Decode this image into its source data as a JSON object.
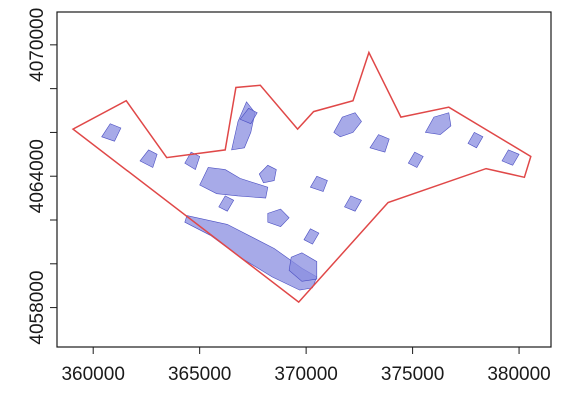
{
  "chart_data": {
    "type": "map",
    "title": "",
    "xlabel": "",
    "ylabel": "",
    "xlim": [
      358300,
      381500
    ],
    "ylim": [
      4056200,
      4071500
    ],
    "x_ticks": [
      {
        "value": 360000,
        "label": "360000"
      },
      {
        "value": 365000,
        "label": "365000"
      },
      {
        "value": 370000,
        "label": "370000"
      },
      {
        "value": 375000,
        "label": "375000"
      },
      {
        "value": 380000,
        "label": "380000"
      }
    ],
    "y_ticks": [
      {
        "value": 4058000,
        "label": "4058000",
        "show_label": true
      },
      {
        "value": 4060000,
        "label": "4060000",
        "show_label": false
      },
      {
        "value": 4062000,
        "label": "4062000",
        "show_label": false
      },
      {
        "value": 4064000,
        "label": "4064000",
        "show_label": true
      },
      {
        "value": 4066000,
        "label": "4066000",
        "show_label": false
      },
      {
        "value": 4068000,
        "label": "4068000",
        "show_label": false
      },
      {
        "value": 4070000,
        "label": "4070000",
        "show_label": true
      }
    ],
    "grid": false,
    "boundary": {
      "name": "",
      "color": "#e04848",
      "points": [
        [
          359050,
          4066150
        ],
        [
          361550,
          4067450
        ],
        [
          363450,
          4064850
        ],
        [
          366200,
          4065200
        ],
        [
          366700,
          4068050
        ],
        [
          367850,
          4068150
        ],
        [
          369600,
          4066150
        ],
        [
          370350,
          4066950
        ],
        [
          372200,
          4067450
        ],
        [
          372950,
          4069650
        ],
        [
          374450,
          4066700
        ],
        [
          376700,
          4067150
        ],
        [
          380550,
          4064900
        ],
        [
          380250,
          4063950
        ],
        [
          378450,
          4064350
        ],
        [
          373850,
          4062800
        ],
        [
          369650,
          4058250
        ],
        [
          359050,
          4066150
        ]
      ]
    },
    "patches": {
      "name": "",
      "fill": "#8a8ee0",
      "stroke": "#4b4fc2",
      "shapes": [
        [
          [
            364400,
            4062200
          ],
          [
            366300,
            4061800
          ],
          [
            368500,
            4060700
          ],
          [
            369800,
            4059800
          ],
          [
            370500,
            4059400
          ],
          [
            370300,
            4058900
          ],
          [
            369700,
            4058800
          ],
          [
            368400,
            4059400
          ],
          [
            366900,
            4060300
          ],
          [
            365500,
            4061300
          ],
          [
            364300,
            4061900
          ]
        ],
        [
          [
            365000,
            4063600
          ],
          [
            365400,
            4064400
          ],
          [
            366200,
            4064300
          ],
          [
            366900,
            4063900
          ],
          [
            368200,
            4063500
          ],
          [
            368100,
            4063000
          ],
          [
            366800,
            4063100
          ],
          [
            365800,
            4063200
          ]
        ],
        [
          [
            366500,
            4065200
          ],
          [
            366800,
            4066500
          ],
          [
            367200,
            4067400
          ],
          [
            367600,
            4066900
          ],
          [
            367400,
            4066000
          ],
          [
            367100,
            4065300
          ]
        ],
        [
          [
            369200,
            4059700
          ],
          [
            369800,
            4059200
          ],
          [
            370500,
            4059300
          ],
          [
            370500,
            4060100
          ],
          [
            369800,
            4060500
          ],
          [
            369300,
            4060300
          ]
        ],
        [
          [
            371300,
            4066000
          ],
          [
            371700,
            4066700
          ],
          [
            372300,
            4066900
          ],
          [
            372600,
            4066500
          ],
          [
            372200,
            4066000
          ],
          [
            371600,
            4065800
          ]
        ],
        [
          [
            375600,
            4066000
          ],
          [
            376000,
            4066700
          ],
          [
            376700,
            4066900
          ],
          [
            376800,
            4066300
          ],
          [
            376300,
            4065900
          ]
        ],
        [
          [
            367800,
            4064100
          ],
          [
            368200,
            4064500
          ],
          [
            368600,
            4064300
          ],
          [
            368500,
            4063800
          ],
          [
            368000,
            4063700
          ]
        ],
        [
          [
            368200,
            4062300
          ],
          [
            368800,
            4062500
          ],
          [
            369200,
            4062100
          ],
          [
            368800,
            4061700
          ],
          [
            368200,
            4061900
          ]
        ],
        [
          [
            370200,
            4063500
          ],
          [
            370500,
            4064000
          ],
          [
            371000,
            4063800
          ],
          [
            370800,
            4063300
          ]
        ],
        [
          [
            373000,
            4065300
          ],
          [
            373400,
            4065900
          ],
          [
            373900,
            4065700
          ],
          [
            373700,
            4065100
          ]
        ],
        [
          [
            360400,
            4065800
          ],
          [
            360800,
            4066400
          ],
          [
            361300,
            4066200
          ],
          [
            361000,
            4065600
          ]
        ],
        [
          [
            362200,
            4064700
          ],
          [
            362600,
            4065200
          ],
          [
            363000,
            4065000
          ],
          [
            362800,
            4064400
          ]
        ],
        [
          [
            364300,
            4064600
          ],
          [
            364600,
            4065100
          ],
          [
            365000,
            4064900
          ],
          [
            364800,
            4064300
          ]
        ],
        [
          [
            366900,
            4066600
          ],
          [
            367300,
            4067100
          ],
          [
            367700,
            4066900
          ],
          [
            367400,
            4066400
          ]
        ],
        [
          [
            379200,
            4064700
          ],
          [
            379500,
            4065200
          ],
          [
            380000,
            4065000
          ],
          [
            379700,
            4064500
          ]
        ],
        [
          [
            377600,
            4065500
          ],
          [
            377900,
            4066000
          ],
          [
            378300,
            4065800
          ],
          [
            378000,
            4065300
          ]
        ],
        [
          [
            371800,
            4062600
          ],
          [
            372100,
            4063100
          ],
          [
            372600,
            4062900
          ],
          [
            372300,
            4062400
          ]
        ],
        [
          [
            365900,
            4062600
          ],
          [
            366200,
            4063100
          ],
          [
            366600,
            4062900
          ],
          [
            366300,
            4062400
          ]
        ],
        [
          [
            369900,
            4061100
          ],
          [
            370200,
            4061600
          ],
          [
            370600,
            4061400
          ],
          [
            370300,
            4060900
          ]
        ],
        [
          [
            374800,
            4064600
          ],
          [
            375100,
            4065100
          ],
          [
            375500,
            4064900
          ],
          [
            375200,
            4064400
          ]
        ]
      ]
    }
  }
}
